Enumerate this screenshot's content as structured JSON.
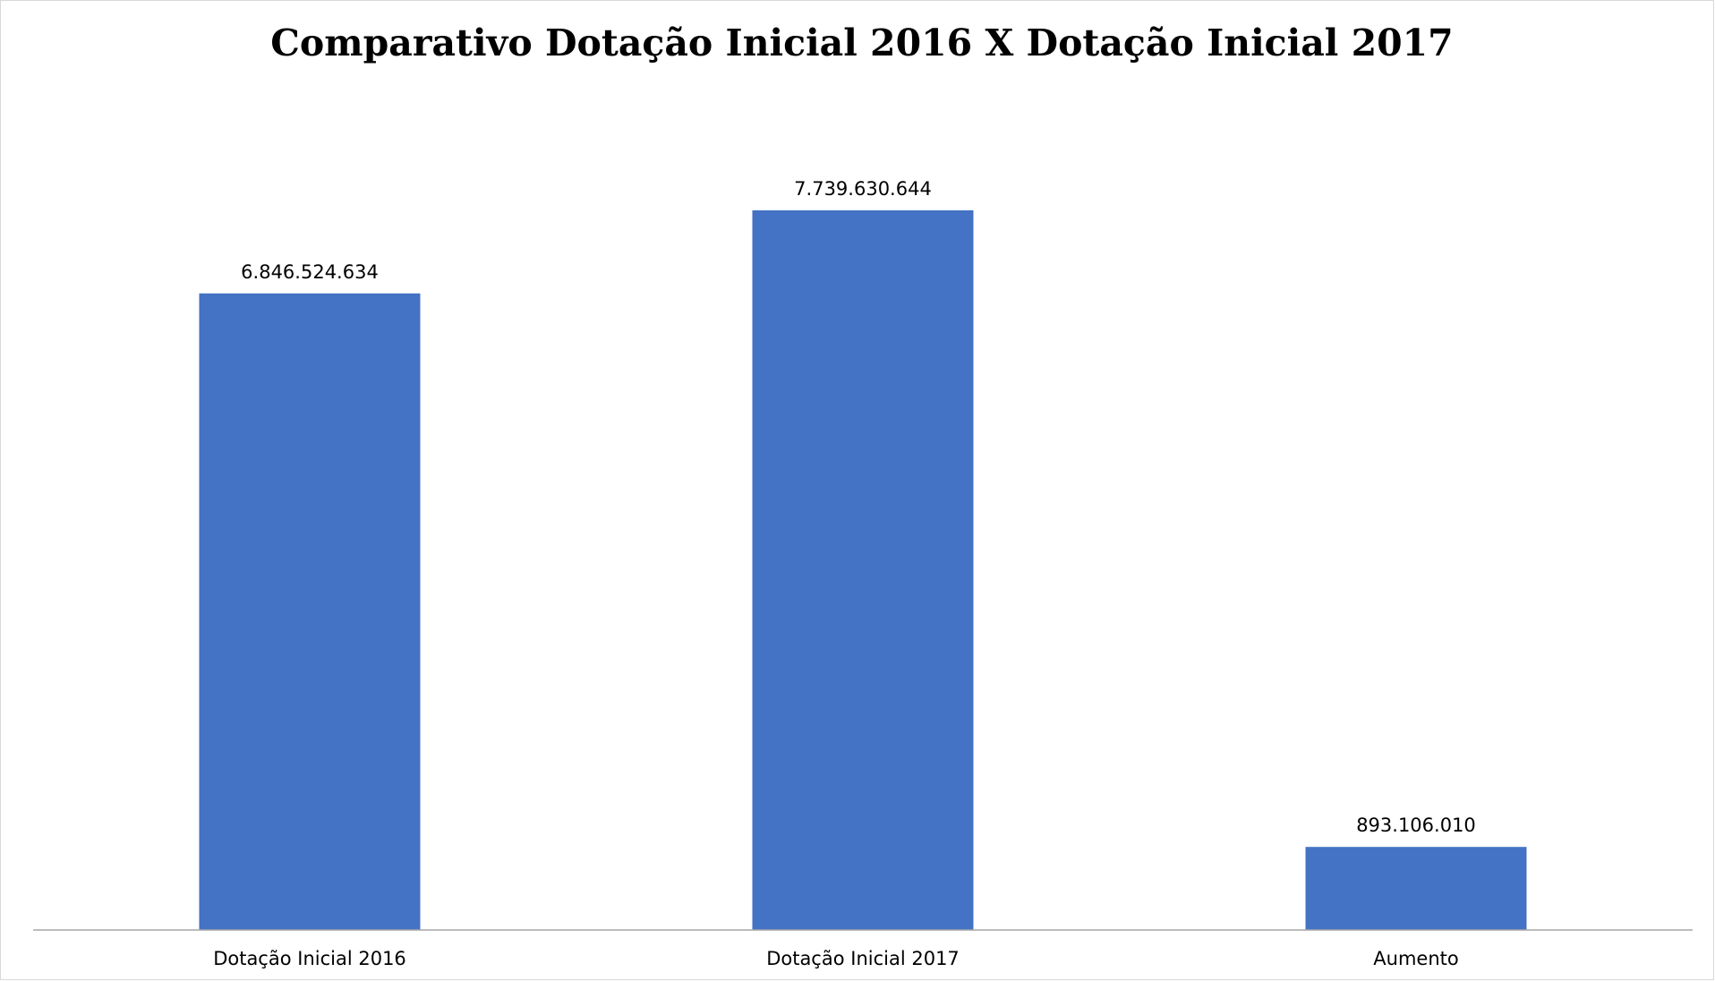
{
  "chart_data": {
    "type": "bar",
    "title": "Comparativo Dotação Inicial 2016 X Dotação Inicial 2017",
    "categories": [
      "Dotação Inicial 2016",
      "Dotação Inicial 2017",
      "Aumento"
    ],
    "values": [
      6846524634,
      7739630644,
      893106010
    ],
    "data_labels": [
      "6.846.524.634",
      "7.739.630.644",
      "893.106.010"
    ],
    "xlabel": "",
    "ylabel": "",
    "ylim": [
      0,
      9000000000
    ],
    "grid": false,
    "legend": "none",
    "colors": {
      "bar": "#4472C4",
      "frame_border": "#D9D9D9",
      "axis": "#A6A6A6"
    }
  }
}
